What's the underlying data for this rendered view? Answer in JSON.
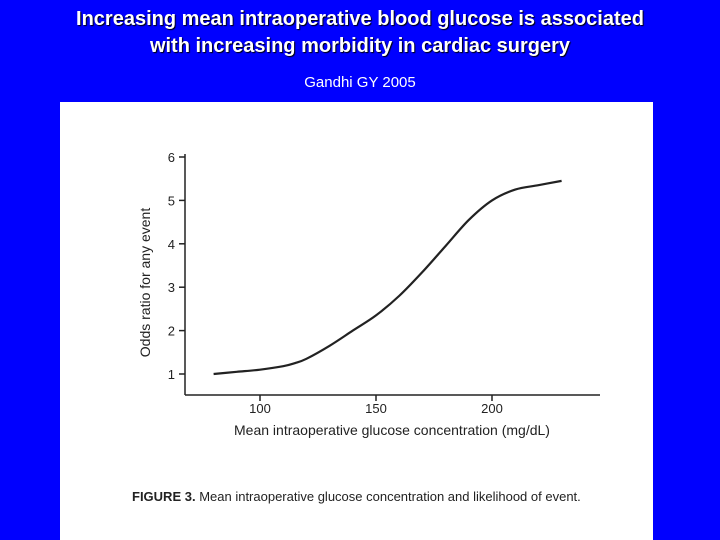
{
  "header": {
    "title_line1": "Increasing mean intraoperative blood glucose is associated",
    "title_line2": "with increasing morbidity in cardiac surgery",
    "citation": "Gandhi GY 2005"
  },
  "figure": {
    "caption_label": "FIGURE 3.",
    "caption_text": " Mean intraoperative glucose concentration and likelihood of event."
  },
  "chart_data": {
    "type": "line",
    "xlabel": "Mean intraoperative glucose concentration (mg/dL)",
    "ylabel": "Odds ratio for any event",
    "xlim": [
      75,
      235
    ],
    "ylim": [
      1,
      6
    ],
    "xticks": [
      100,
      150,
      200
    ],
    "yticks": [
      1,
      2,
      3,
      4,
      5,
      6
    ],
    "grid": false,
    "series": [
      {
        "x": [
          80,
          90,
          100,
          110,
          115,
          120,
          130,
          140,
          150,
          160,
          170,
          180,
          190,
          200,
          210,
          220,
          230
        ],
        "values": [
          1.0,
          1.05,
          1.1,
          1.18,
          1.25,
          1.35,
          1.65,
          2.0,
          2.35,
          2.8,
          3.35,
          3.95,
          4.55,
          5.0,
          5.25,
          5.35,
          5.45
        ]
      }
    ]
  }
}
